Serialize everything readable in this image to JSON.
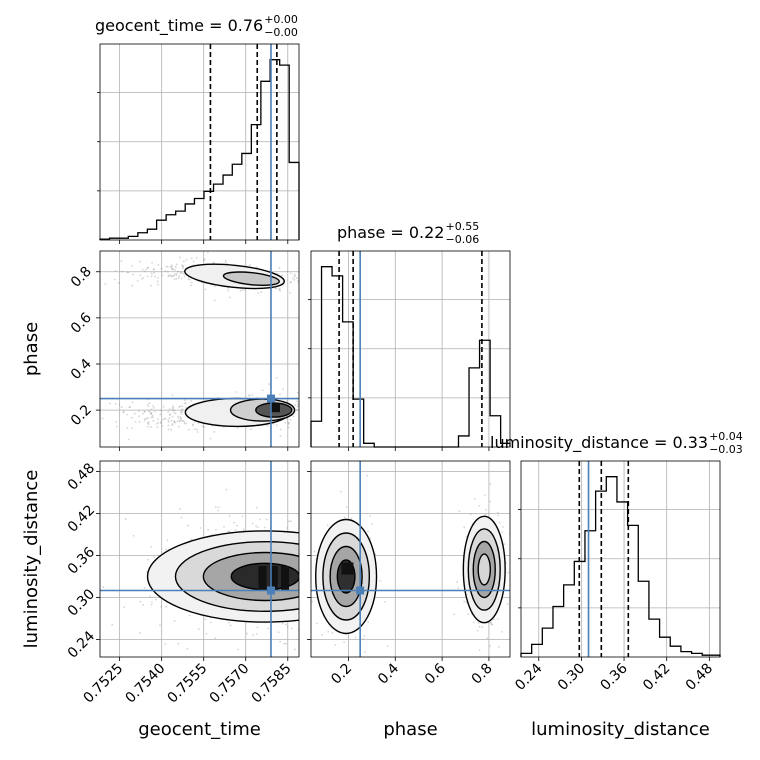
{
  "chart_data": {
    "type": "corner",
    "parameters": [
      "geocent_time",
      "phase",
      "luminosity_distance"
    ],
    "truths": {
      "geocent_time": 0.7579,
      "phase": 0.25,
      "luminosity_distance": 0.31
    },
    "colors": {
      "truth": "#4a7fb8",
      "hist": "#000000",
      "grid": "#b0b0b0",
      "quantile": "#000000"
    },
    "titles": [
      {
        "param": "geocent_time",
        "text": "geocent_time = 0.76",
        "up": "+0.00",
        "down": "−0.00"
      },
      {
        "param": "phase",
        "text": "phase = 0.22",
        "up": "+0.55",
        "down": "−0.06"
      },
      {
        "param": "luminosity_distance",
        "text": "luminosity_distance = 0.33",
        "up": "+0.04",
        "down": "−0.03"
      }
    ],
    "axes": {
      "geocent_time": {
        "range": [
          0.7518,
          0.7589
        ],
        "ticks": [
          0.7525,
          0.754,
          0.7555,
          0.757,
          0.7585
        ],
        "tick_labels": [
          "0.7525",
          "0.7540",
          "0.7555",
          "0.7570",
          "0.7585"
        ],
        "label": "geocent_time"
      },
      "phase": {
        "range": [
          0.04,
          0.89
        ],
        "ticks": [
          0.2,
          0.4,
          0.6,
          0.8
        ],
        "tick_labels": [
          "0.2",
          "0.4",
          "0.6",
          "0.8"
        ],
        "label": "phase"
      },
      "luminosity_distance": {
        "range": [
          0.215,
          0.495
        ],
        "ticks": [
          0.24,
          0.3,
          0.36,
          0.42,
          0.48
        ],
        "tick_labels": [
          "0.24",
          "0.30",
          "0.36",
          "0.42",
          "0.48"
        ],
        "label": "luminosity_distance"
      }
    },
    "histograms": {
      "geocent_time": {
        "bin_edges": [
          0.7518,
          0.75214,
          0.75247,
          0.75281,
          0.75315,
          0.75349,
          0.75382,
          0.75416,
          0.7545,
          0.75484,
          0.75517,
          0.75551,
          0.75585,
          0.75619,
          0.75652,
          0.75686,
          0.7572,
          0.75754,
          0.75787,
          0.75821,
          0.75855,
          0.7589
        ],
        "counts": [
          0.5,
          1,
          1,
          2,
          4,
          6,
          11,
          14,
          16,
          20,
          23,
          27,
          31,
          36,
          42,
          48,
          64,
          88,
          100,
          97,
          43
        ],
        "quantiles": [
          0.75574,
          0.75741,
          0.75811
        ]
      },
      "phase": {
        "bin_edges": [
          0.04,
          0.085,
          0.13,
          0.175,
          0.22,
          0.265,
          0.31,
          0.355,
          0.4,
          0.445,
          0.49,
          0.535,
          0.58,
          0.625,
          0.67,
          0.715,
          0.76,
          0.805,
          0.85,
          0.89
        ],
        "counts": [
          14,
          98,
          93,
          68,
          26,
          2,
          0,
          0,
          0,
          0,
          0,
          0,
          0,
          0,
          6,
          43,
          58,
          17,
          2
        ],
        "quantiles": [
          0.16,
          0.22,
          0.77
        ]
      },
      "luminosity_distance": {
        "bin_edges": [
          0.215,
          0.23,
          0.245,
          0.26,
          0.275,
          0.29,
          0.305,
          0.32,
          0.335,
          0.35,
          0.365,
          0.38,
          0.395,
          0.41,
          0.425,
          0.44,
          0.455,
          0.47,
          0.485,
          0.495
        ],
        "counts": [
          2,
          7,
          16,
          28,
          40,
          53,
          70,
          92,
          100,
          86,
          73,
          42,
          21,
          11,
          6,
          3,
          2,
          1,
          1
        ],
        "quantiles": [
          0.297,
          0.328,
          0.366
        ]
      }
    },
    "contour_pairs": [
      {
        "x": "geocent_time",
        "y": "phase"
      },
      {
        "x": "geocent_time",
        "y": "luminosity_distance"
      },
      {
        "x": "phase",
        "y": "luminosity_distance"
      }
    ]
  }
}
